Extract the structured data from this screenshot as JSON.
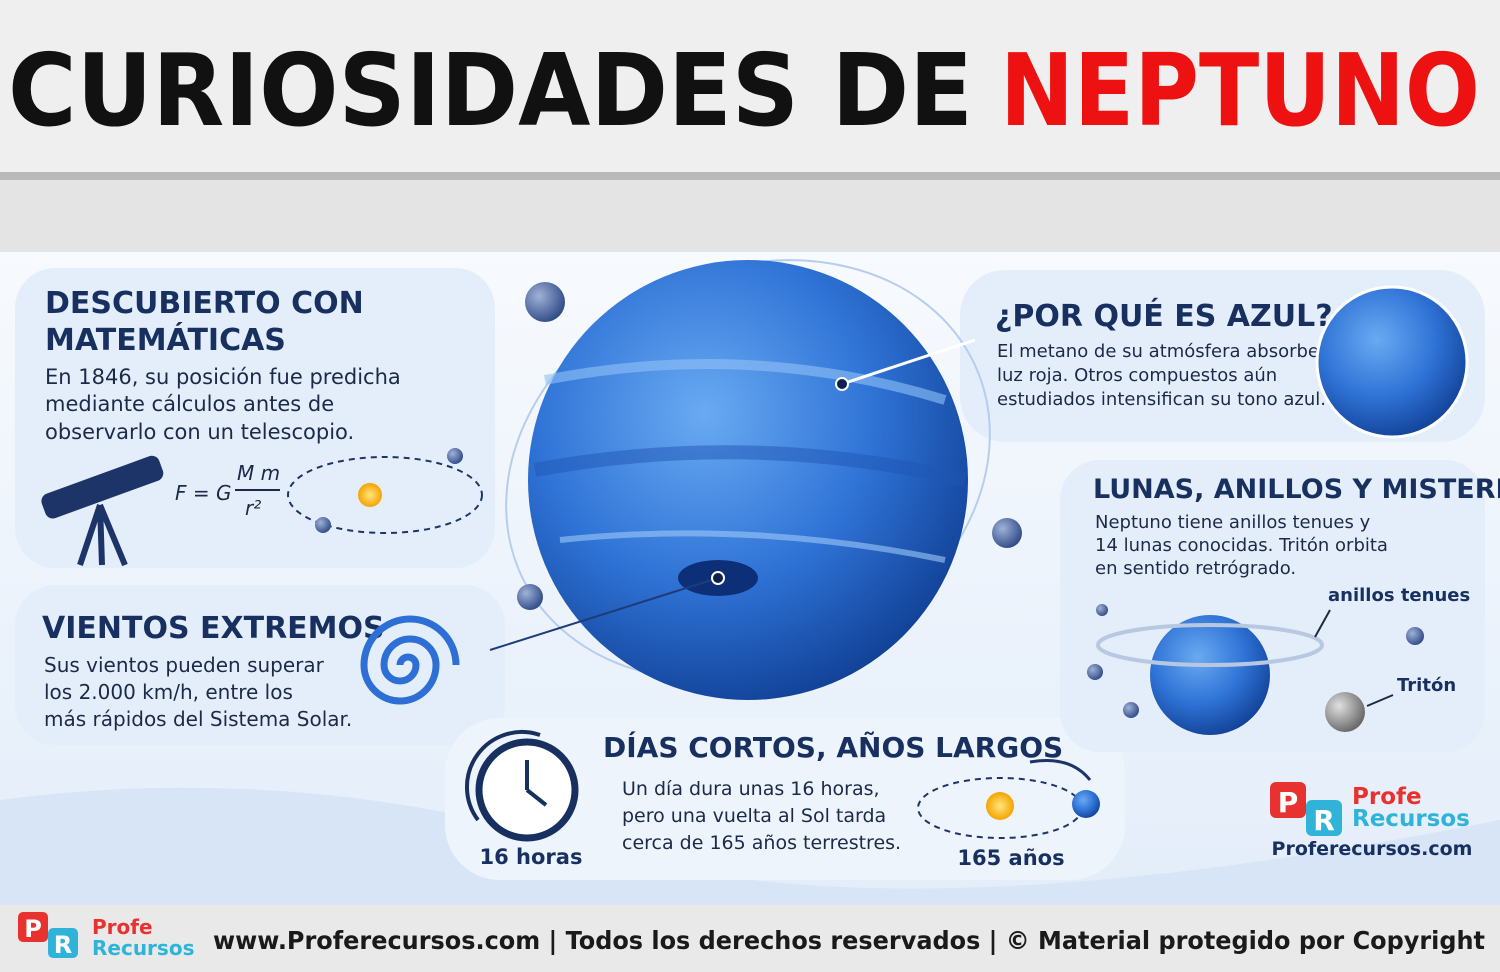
{
  "header": {
    "title_black": "CURIOSIDADES DE",
    "title_red": "NEPTUNO"
  },
  "discovery": {
    "title": [
      "DESCUBIERTO CON",
      "MATEMÁTICAS"
    ],
    "body": [
      "En 1846, su posición fue predicha",
      "mediante cálculos antes de",
      "observarlo con un telescopio."
    ],
    "formula": {
      "left": "F = G",
      "numerator": "M m",
      "denominator": "r²"
    }
  },
  "winds": {
    "title": "VIENTOS EXTREMOS",
    "body": [
      "Sus vientos pueden superar",
      "los 2.000 km/h, entre los",
      "más rápidos del Sistema Solar."
    ]
  },
  "days": {
    "title": "DÍAS CORTOS, AÑOS LARGOS",
    "body": [
      "Un día dura unas 16 horas,",
      "pero una vuelta al Sol tarda",
      "cerca de 165 años terrestres."
    ],
    "day_label": "16 horas",
    "year_label": "165 años"
  },
  "blue": {
    "title": "¿POR QUÉ ES AZUL?",
    "body": [
      "El metano de su atmósfera absorbe",
      "luz roja. Otros compuestos aún",
      "estudiados intensifican su tono azul."
    ]
  },
  "moons": {
    "title": "LUNAS, ANILLOS Y MISTERIOS",
    "body": [
      "Neptuno tiene anillos tenues y",
      "14 lunas conocidas. Tritón orbita",
      "en sentido retrógrado."
    ],
    "rings_label": "anillos tenues",
    "triton_label": "Tritón"
  },
  "logo": {
    "p": "P",
    "r": "R",
    "line1": "Profe",
    "line2": "Recursos",
    "site": "Proferecursos.com"
  },
  "footer": {
    "p": "P",
    "r": "R",
    "line1": "Profe",
    "line2": "Recursos",
    "text": "www.Proferecursos.com | Todos los derechos reservados | © Material protegido por Copyright"
  }
}
